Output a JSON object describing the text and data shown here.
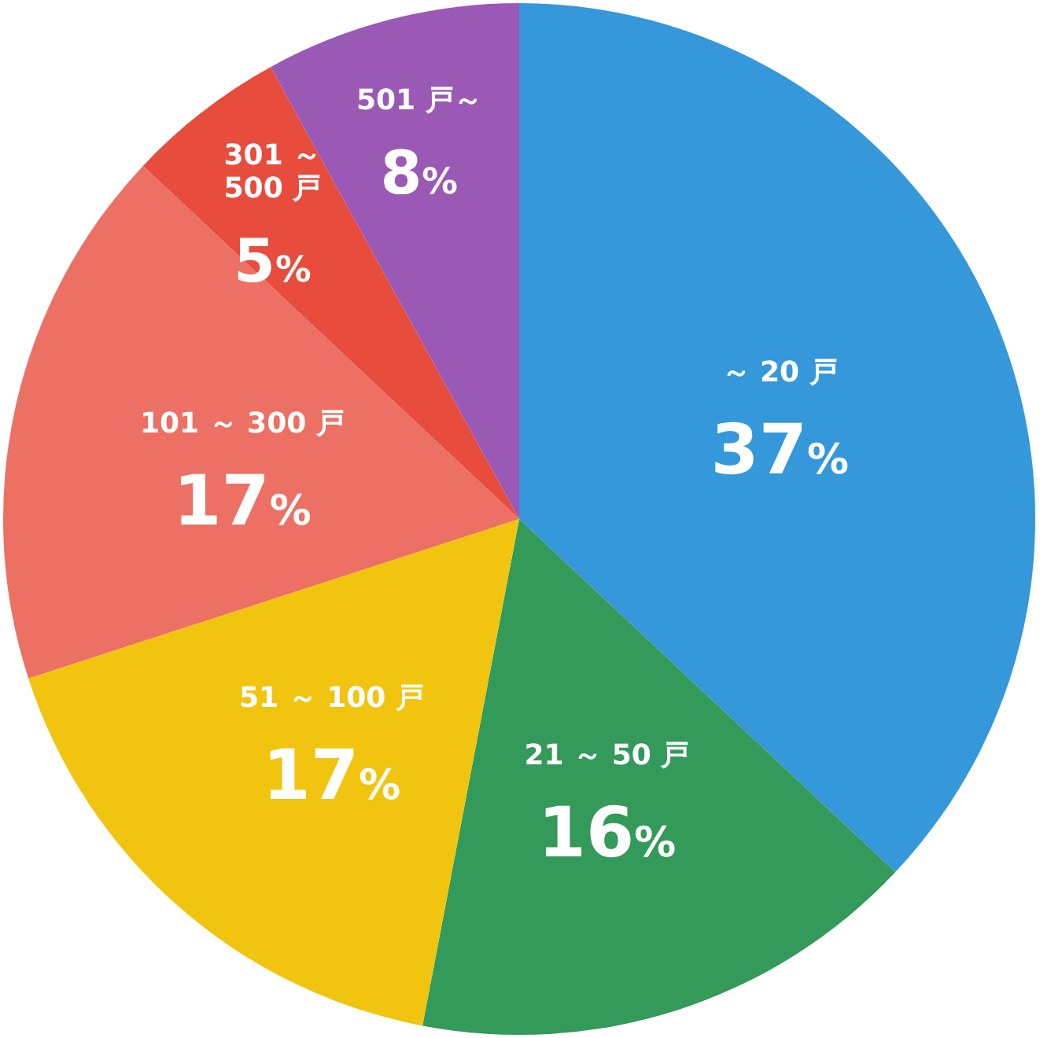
{
  "chart_data": {
    "type": "pie",
    "categories": [
      "～ 20 戸",
      "21 ～ 50 戸",
      "51 ～ 100 戸",
      "101 ～ 300 戸",
      "301 ～ 500 戸",
      "501 戸～"
    ],
    "values": [
      37,
      16,
      17,
      17,
      5,
      8
    ],
    "colors": [
      "#3498db",
      "#339a5a",
      "#f1c40f",
      "#ec7063",
      "#e74c3c",
      "#9b59b6"
    ],
    "value_labels": [
      "37%",
      "16%",
      "17%",
      "17%",
      "5%",
      "8%"
    ]
  }
}
